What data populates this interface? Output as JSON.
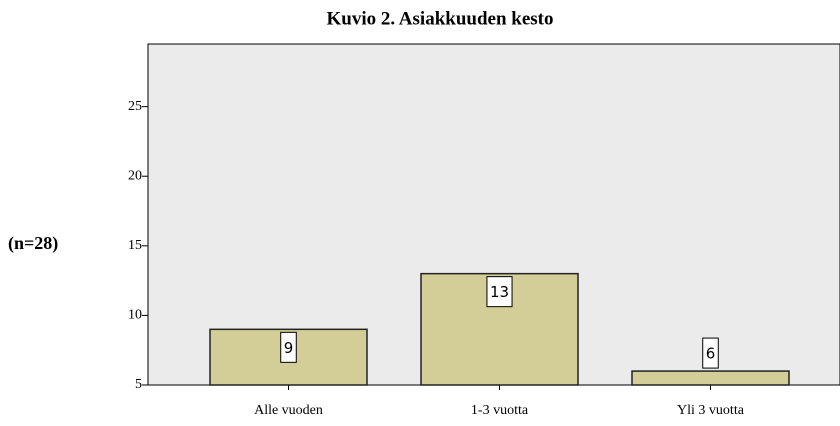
{
  "chart_data": {
    "type": "bar",
    "title": "Kuvio 2. Asiakkuuden kesto",
    "y_label": "(n=28)",
    "categories": [
      "Alle vuoden",
      "1-3 vuotta",
      "Yli 3 vuotta"
    ],
    "values": [
      9,
      13,
      6
    ],
    "color": "#d3ce97",
    "ylim": [
      5,
      29.5
    ],
    "yticks": [
      5,
      10,
      15,
      20,
      25
    ],
    "grid": false
  }
}
